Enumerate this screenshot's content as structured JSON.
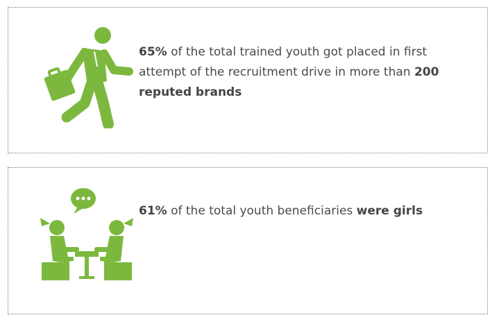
{
  "colors": {
    "accent_green": "#7cb83e",
    "text": "#4a4a4a",
    "border": "#777777"
  },
  "placement_card": {
    "icon": "running-person-with-briefcase-icon",
    "percent": "65%",
    "text_1": " of the total trained youth got placed in first attempt of the recruitment drive in more than ",
    "highlight": "200 reputed brands"
  },
  "girls_card": {
    "icon": "two-girls-talking-at-table-icon",
    "percent": "61%",
    "text_1": " of the total youth beneficiaries ",
    "highlight": "were girls"
  }
}
